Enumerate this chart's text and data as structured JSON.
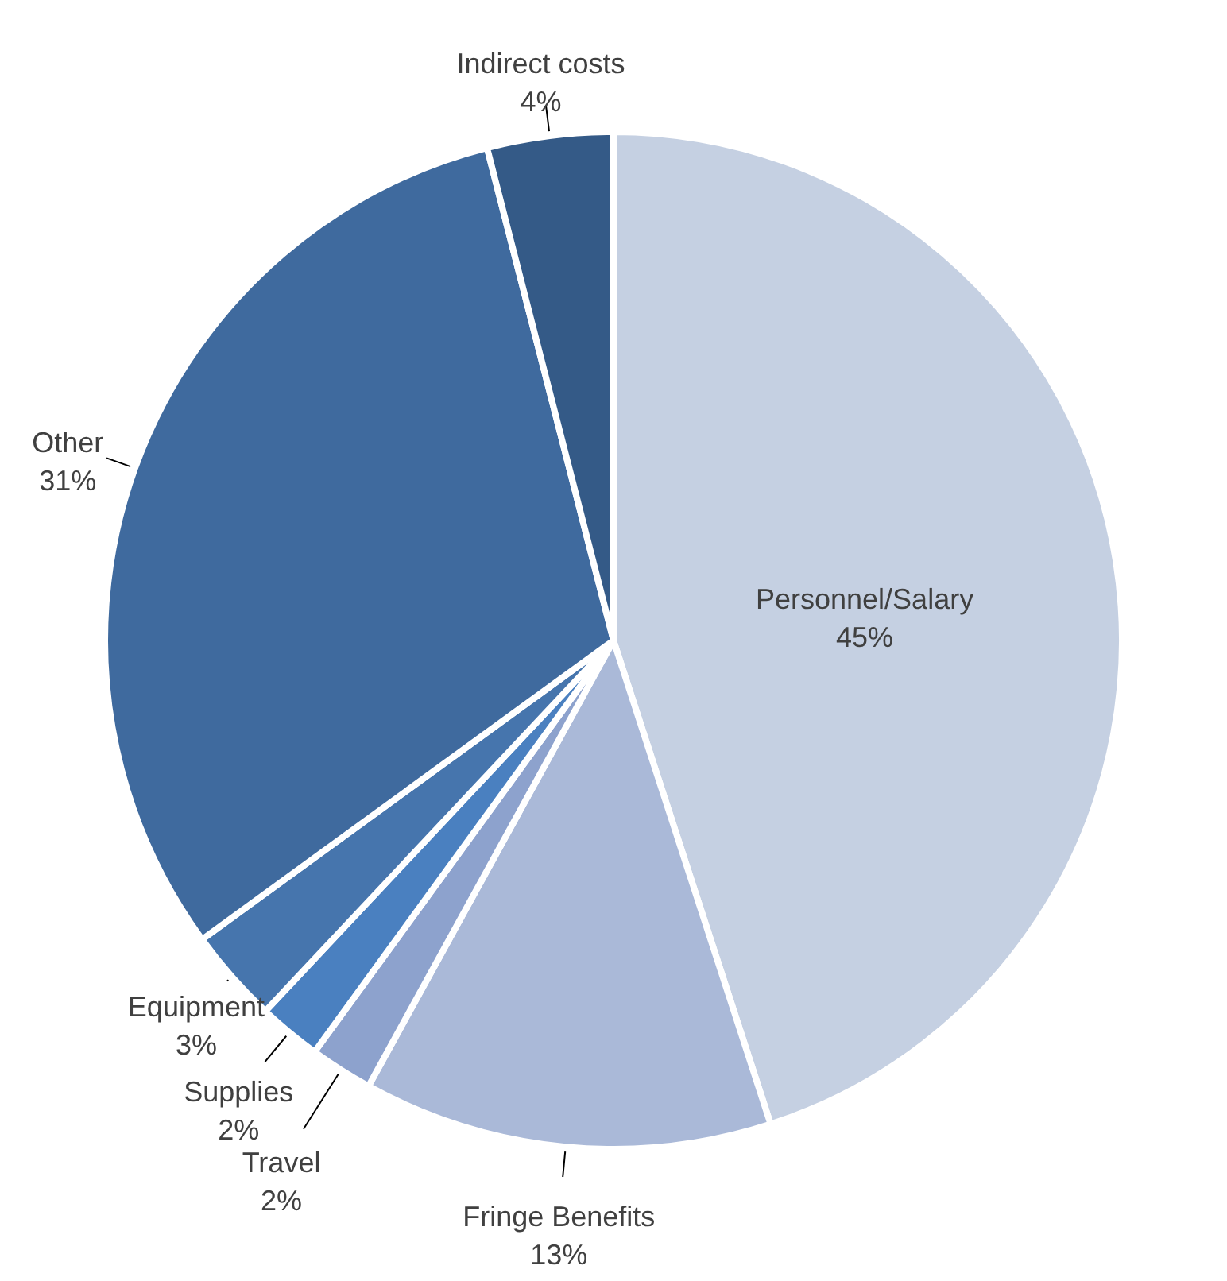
{
  "chart_data": {
    "type": "pie",
    "categories": [
      "Personnel/Salary",
      "Fringe Benefits",
      "Travel",
      "Supplies",
      "Equipment",
      "Other",
      "Indirect costs"
    ],
    "values": [
      45,
      13,
      2,
      2,
      3,
      31,
      4
    ],
    "value_labels": [
      "45%",
      "13%",
      "2%",
      "2%",
      "3%",
      "31%",
      "4%"
    ],
    "colors": [
      "#c5d0e2",
      "#aab9d8",
      "#8da2cd",
      "#4a80c0",
      "#4675ad",
      "#3f6a9e",
      "#345a87"
    ]
  }
}
